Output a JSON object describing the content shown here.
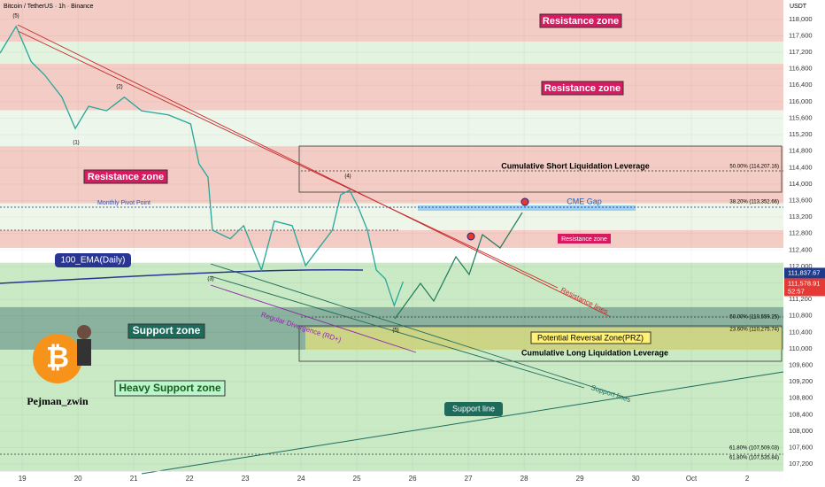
{
  "chart_data": {
    "type": "line",
    "title": "Bitcoin / TetherUS · 1h · Binance",
    "y_unit": "USDT",
    "xlim": [
      18.6,
      32.65
    ],
    "xticks": [
      19,
      20,
      21,
      22,
      23,
      24,
      25,
      26,
      27,
      28,
      29,
      30,
      {
        "value": 31,
        "label": "Oct"
      },
      {
        "value": 32,
        "label": "2"
      }
    ],
    "ylim": [
      107030,
      118470
    ],
    "yticks": [
      {
        "value": 107200,
        "label": "107,200"
      },
      {
        "value": 107600,
        "label": "107,600"
      },
      {
        "value": 108000,
        "label": "108,000"
      },
      {
        "value": 108400,
        "label": "108,400"
      },
      {
        "value": 108800,
        "label": "108,800"
      },
      {
        "value": 109200,
        "label": "109,200"
      },
      {
        "value": 109600,
        "label": "109,600"
      },
      {
        "value": 110000,
        "label": "110,000"
      },
      {
        "value": 110400,
        "label": "110,400"
      },
      {
        "value": 110800,
        "label": "110,800"
      },
      {
        "value": 111200,
        "label": "111,200"
      },
      {
        "value": 111600,
        "label": "111,600"
      },
      {
        "value": 112000,
        "label": "112,000"
      },
      {
        "value": 112400,
        "label": "112,400"
      },
      {
        "value": 112800,
        "label": "112,800"
      },
      {
        "value": 113200,
        "label": "113,200"
      },
      {
        "value": 113600,
        "label": "113,600"
      },
      {
        "value": 114000,
        "label": "114,000"
      },
      {
        "value": 114400,
        "label": "114,400"
      },
      {
        "value": 114800,
        "label": "114,800"
      },
      {
        "value": 115200,
        "label": "115,200"
      },
      {
        "value": 115600,
        "label": "115,600"
      },
      {
        "value": 116000,
        "label": "116,000"
      },
      {
        "value": 116400,
        "label": "116,400"
      },
      {
        "value": 116800,
        "label": "116,800"
      },
      {
        "value": 117200,
        "label": "117,200"
      },
      {
        "value": 117600,
        "label": "117,600"
      },
      {
        "value": 118000,
        "label": "118,000"
      }
    ],
    "x": [
      18.6,
      18.89,
      19.16,
      19.4,
      19.71,
      19.95,
      20.19,
      20.51,
      20.83,
      21.14,
      21.62,
      22.02,
      22.17,
      22.33,
      22.41,
      22.73,
      22.97,
      23.29,
      23.52,
      23.84,
      24.08,
      24.32,
      24.56,
      24.71,
      24.87,
      25.03,
      25.19,
      25.35,
      25.51,
      25.67,
      25.83
    ],
    "series": [
      {
        "color": "#26a69a",
        "values": [
          117180,
          117830,
          116970,
          116650,
          116110,
          115350,
          115890,
          115780,
          116110,
          115780,
          115680,
          115460,
          114490,
          114170,
          112880,
          112670,
          112990,
          111910,
          113100,
          112990,
          112020,
          112450,
          112880,
          113740,
          113850,
          113420,
          112880,
          111910,
          111700,
          111050,
          111630
        ]
      }
    ],
    "zones": [
      {
        "range": [
          117460,
          118470
        ],
        "color": "#f3cdc5",
        "label": "Resistance zone"
      },
      {
        "range": [
          116920,
          117460
        ],
        "color": "#e2f3df"
      },
      {
        "range": [
          115790,
          116920
        ],
        "color": "#f3cdc5",
        "label": "Resistance zone"
      },
      {
        "range": [
          114920,
          115790
        ],
        "color": "#ecf6ea"
      },
      {
        "range": [
          113530,
          114920
        ],
        "color": "#f3cdc5",
        "label": "Resistance zone"
      },
      {
        "range": [
          112880,
          113530
        ],
        "color": "#eef6ea"
      },
      {
        "range": [
          112450,
          112880
        ],
        "color": "#f3cdc5",
        "label": "Resistance zone"
      },
      {
        "range": [
          107030,
          112090
        ],
        "color": "#c9eac5",
        "label": "Heavy Support zone"
      },
      {
        "range": [
          109980,
          111010
        ],
        "color": "#7fa896",
        "label": "Support zone"
      }
    ],
    "price_tags": [
      {
        "value": 111837.67,
        "label": "111,837.67",
        "color": "#1e3a8a"
      },
      {
        "value": 111578.91,
        "label": "111,578.91",
        "color": "#e53935"
      }
    ],
    "countdown": "52:57",
    "annotations": {
      "short_liq": "Cumulative Short Liquidation Leverage",
      "long_liq": "Cumulative Long Liquidation Leverage",
      "pivot": "Monthly Pivot Point",
      "cme": "CME Gap",
      "ema": "100_EMA(Daily)",
      "prz": "Potential Reversal Zone(PRZ)",
      "support_lines": "Support lines",
      "resistance_lines": "Resistance lines",
      "divergence": "Regular Divergence (RD+)",
      "support_line": "Support line",
      "author": "Pejman_zwin"
    },
    "fib_labels": [
      "50.00% (114,207.16)",
      "38.20% (113,352.66)",
      "50.00% (110,559.25)",
      "23.60% (110,275.74)",
      "61.80% (107,509.03)",
      "61.80% (107,535.84)"
    ],
    "waves": [
      "(5)",
      "(2)",
      "(1)",
      "(3)",
      "(4)",
      "(5)"
    ]
  }
}
